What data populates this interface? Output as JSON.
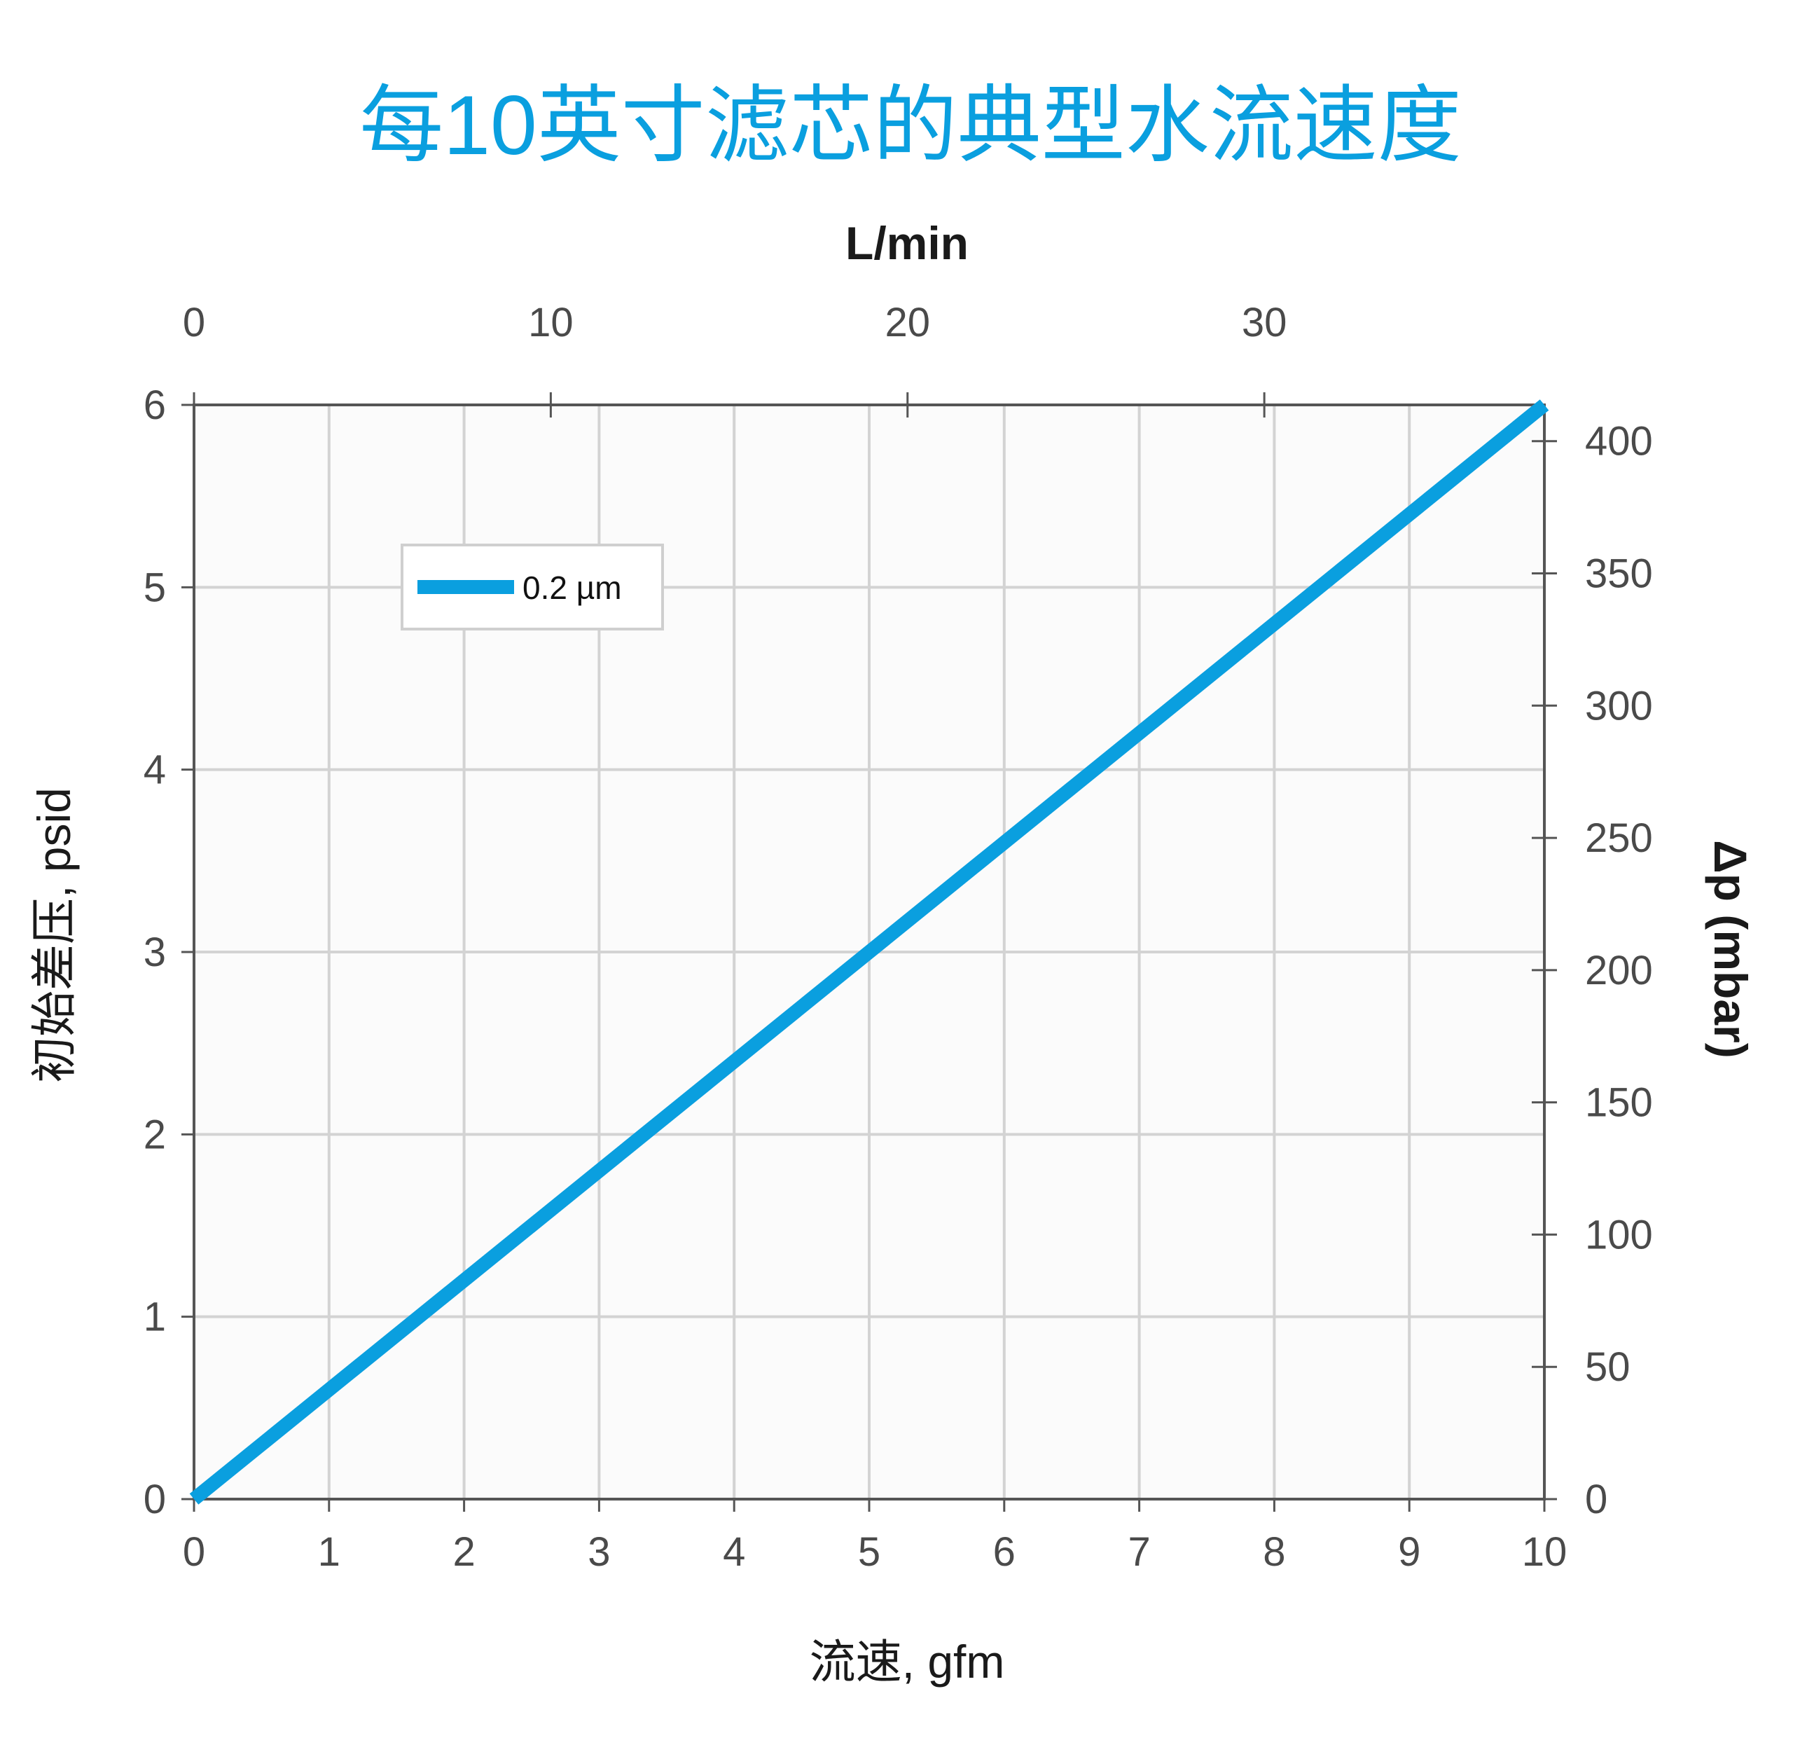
{
  "chart_data": {
    "type": "line",
    "title": "每10英寸滤芯的典型水流速度",
    "xlabel": "流速, gfm",
    "ylabel": "初始差压, psid",
    "x2label": "L/min",
    "y2label": "Δp (mbar)",
    "xlim": [
      0,
      10
    ],
    "ylim": [
      0,
      6
    ],
    "x2lim": [
      0,
      37.85
    ],
    "y2lim": [
      0,
      413.7
    ],
    "xticks": [
      0,
      1,
      2,
      3,
      4,
      5,
      6,
      7,
      8,
      9,
      10
    ],
    "yticks": [
      0,
      1,
      2,
      3,
      4,
      5,
      6
    ],
    "x2ticks": [
      0,
      10,
      20,
      30
    ],
    "y2ticks": [
      0,
      50,
      100,
      150,
      200,
      250,
      300,
      350,
      400
    ],
    "grid": true,
    "legend_position": "top-left",
    "series": [
      {
        "name": "0.2   µm",
        "color": "#0a9fdf",
        "x": [
          0,
          10
        ],
        "y": [
          0,
          6
        ]
      }
    ]
  }
}
